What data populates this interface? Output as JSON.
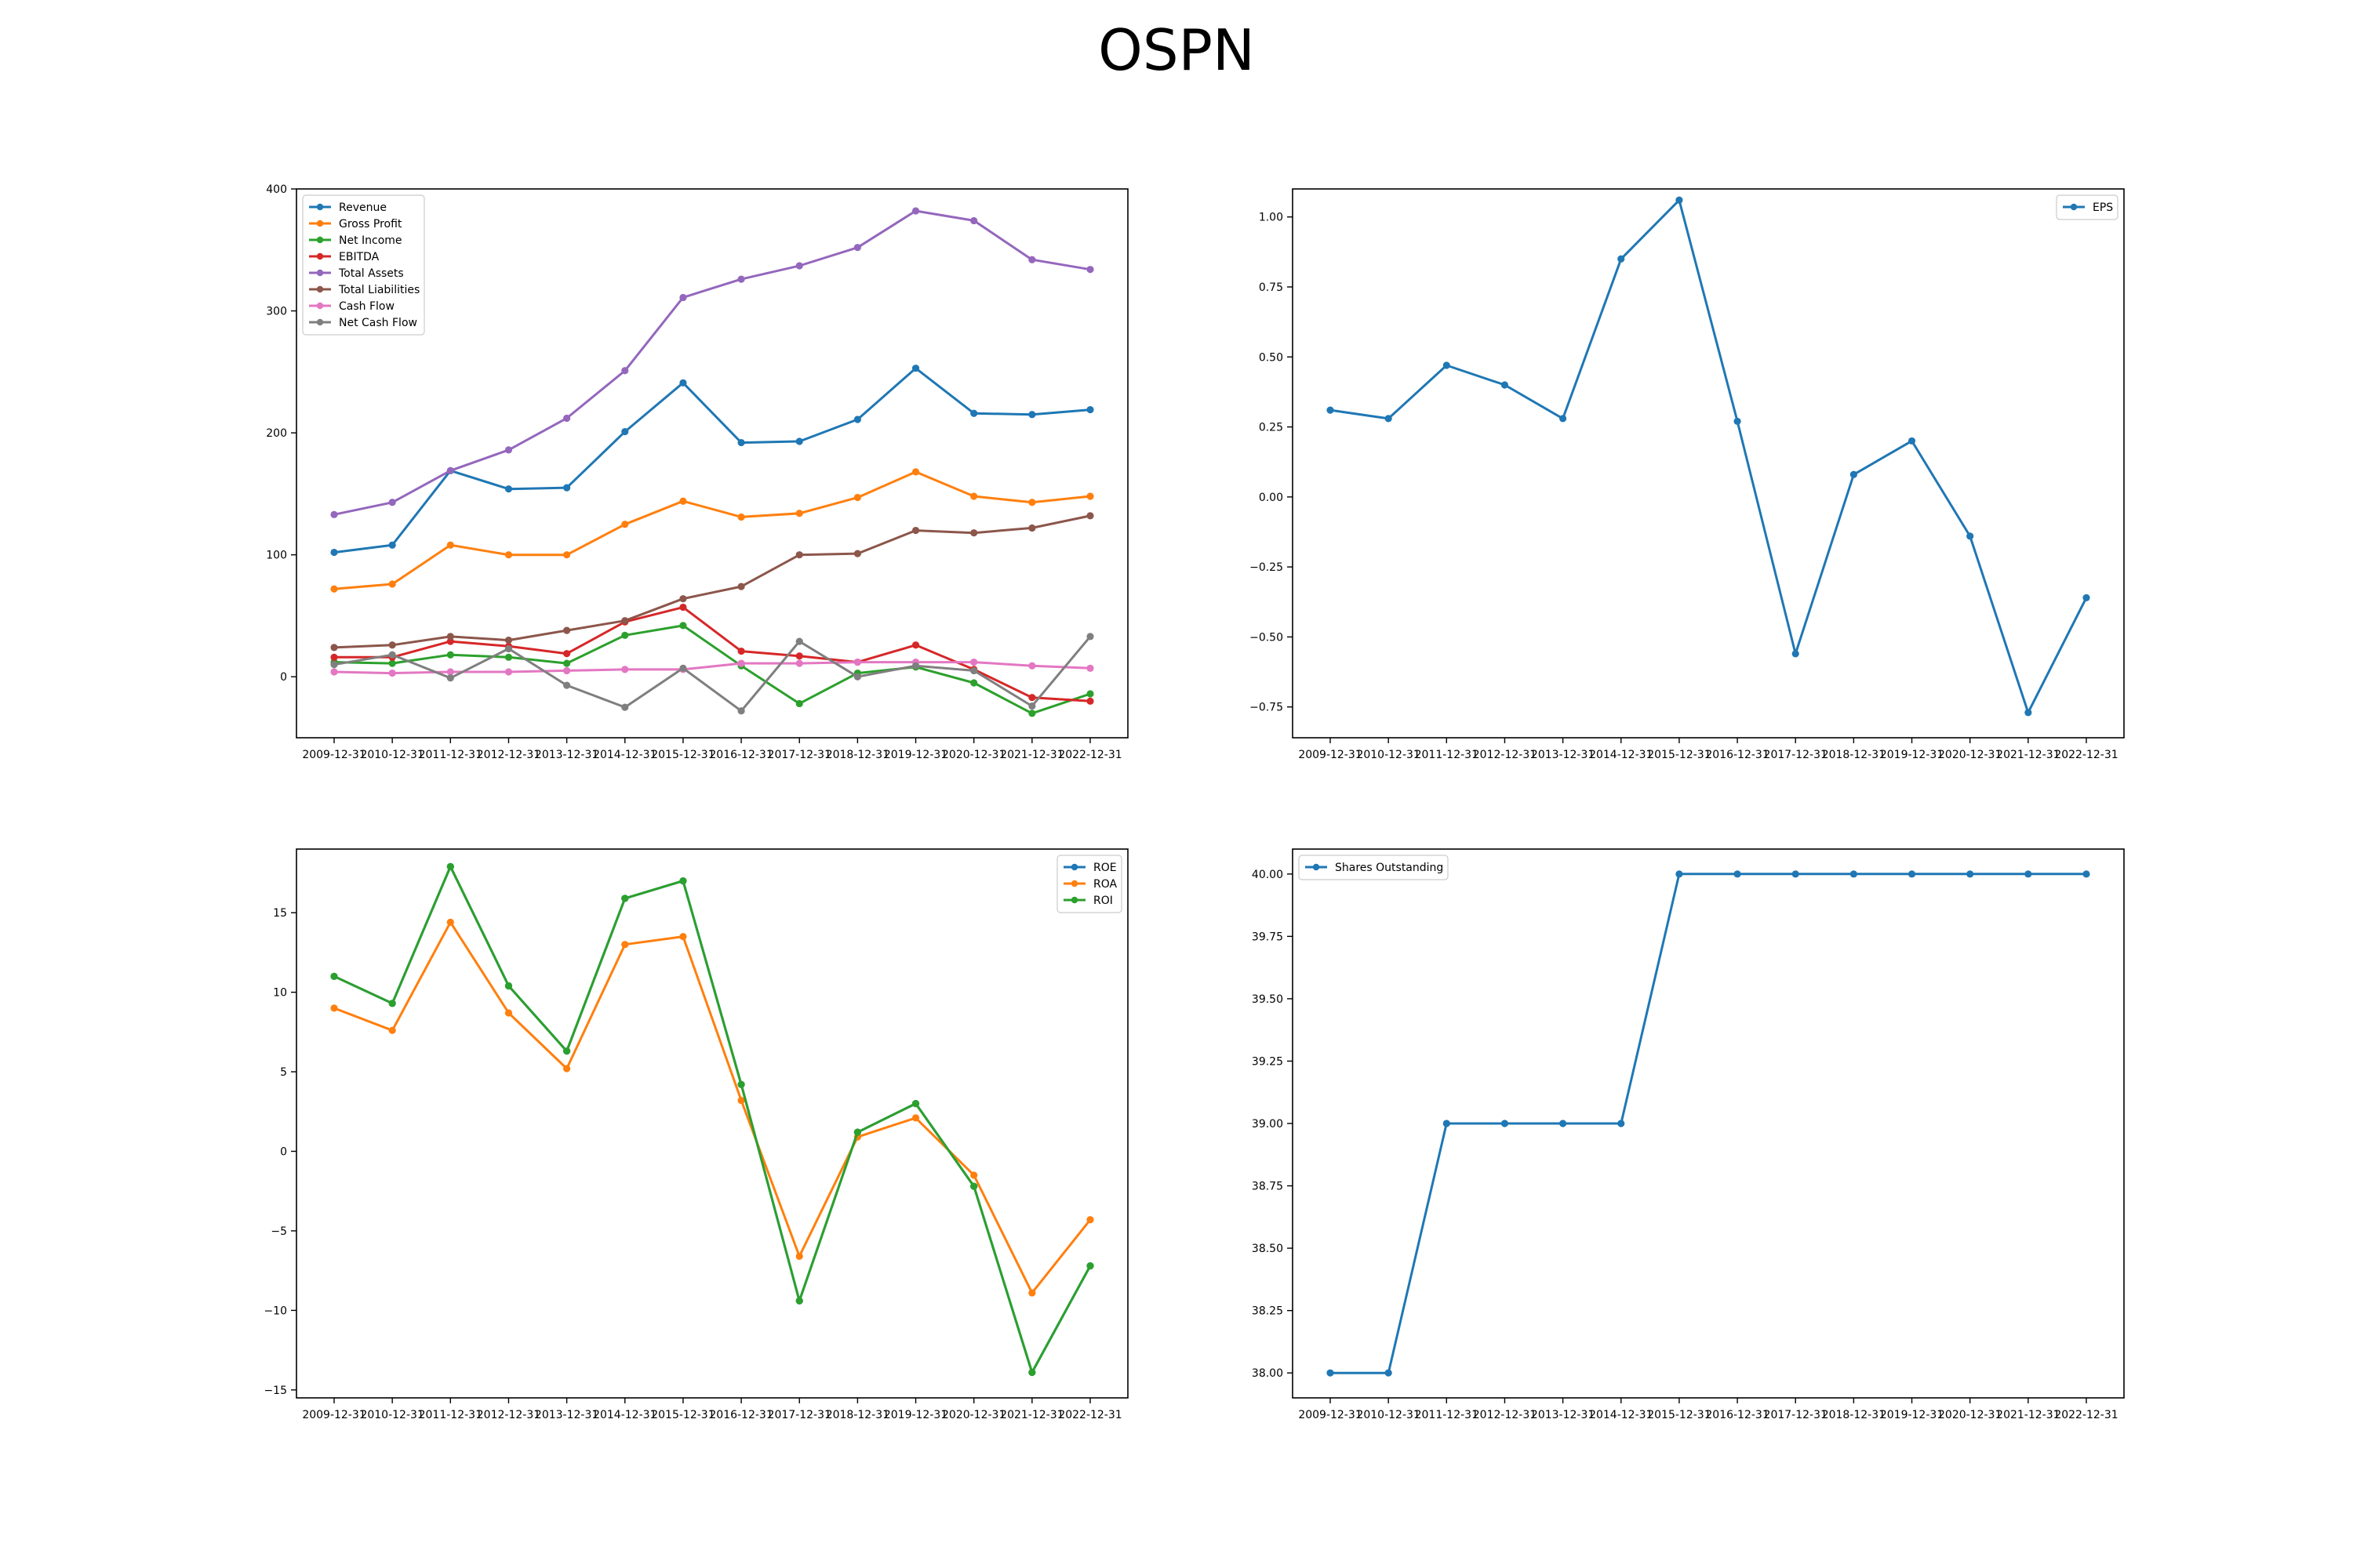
{
  "figure": {
    "title": "OSPN"
  },
  "colors": {
    "blue": "#1f77b4",
    "orange": "#ff7f0e",
    "green": "#2ca02c",
    "red": "#d62728",
    "purple": "#9467bd",
    "brown": "#8c564b",
    "pink": "#e377c2",
    "gray": "#7f7f7f"
  },
  "chart_data": [
    {
      "id": "financials",
      "type": "line",
      "title": "",
      "xlabel": "",
      "ylabel": "",
      "categories": [
        "2009-12-31",
        "2010-12-31",
        "2011-12-31",
        "2012-12-31",
        "2013-12-31",
        "2014-12-31",
        "2015-12-31",
        "2016-12-31",
        "2017-12-31",
        "2018-12-31",
        "2019-12-31",
        "2020-12-31",
        "2021-12-31",
        "2022-12-31"
      ],
      "ylim": [
        -50,
        400
      ],
      "yticks": [
        0,
        100,
        200,
        300,
        400
      ],
      "yticks_labels": [
        "0",
        "100",
        "200",
        "300",
        "400"
      ],
      "legend": "upper-left",
      "series": [
        {
          "name": "Revenue",
          "color": "#1f77b4",
          "values": [
            102,
            108,
            169,
            154,
            155,
            201,
            241,
            192,
            193,
            211,
            253,
            216,
            215,
            219
          ]
        },
        {
          "name": "Gross Profit",
          "color": "#ff7f0e",
          "values": [
            72,
            76,
            108,
            100,
            100,
            125,
            144,
            131,
            134,
            147,
            168,
            148,
            143,
            148
          ]
        },
        {
          "name": "Net Income",
          "color": "#2ca02c",
          "values": [
            12,
            11,
            18,
            16,
            11,
            34,
            42,
            9,
            -22,
            3,
            8,
            -5,
            -30,
            -14
          ]
        },
        {
          "name": "EBITDA",
          "color": "#d62728",
          "values": [
            16,
            16,
            29,
            25,
            19,
            45,
            57,
            21,
            17,
            12,
            26,
            6,
            -17,
            -20
          ]
        },
        {
          "name": "Total Assets",
          "color": "#9467bd",
          "values": [
            133,
            143,
            169,
            186,
            212,
            251,
            311,
            326,
            337,
            352,
            382,
            374,
            342,
            334
          ]
        },
        {
          "name": "Total Liabilities",
          "color": "#8c564b",
          "values": [
            24,
            26,
            33,
            30,
            38,
            46,
            64,
            74,
            100,
            101,
            120,
            118,
            122,
            132
          ]
        },
        {
          "name": "Cash Flow",
          "color": "#e377c2",
          "values": [
            4,
            3,
            4,
            4,
            5,
            6,
            6,
            11,
            11,
            12,
            12,
            12,
            9,
            7
          ]
        },
        {
          "name": "Net Cash Flow",
          "color": "#7f7f7f",
          "values": [
            10,
            18,
            -1,
            23,
            -7,
            -25,
            7,
            -28,
            29,
            0,
            9,
            5,
            -24,
            33
          ]
        }
      ]
    },
    {
      "id": "eps",
      "type": "line",
      "title": "",
      "xlabel": "",
      "ylabel": "",
      "categories": [
        "2009-12-31",
        "2010-12-31",
        "2011-12-31",
        "2012-12-31",
        "2013-12-31",
        "2014-12-31",
        "2015-12-31",
        "2016-12-31",
        "2017-12-31",
        "2018-12-31",
        "2019-12-31",
        "2020-12-31",
        "2021-12-31",
        "2022-12-31"
      ],
      "ylim": [
        -0.86,
        1.1
      ],
      "yticks": [
        -0.75,
        -0.5,
        -0.25,
        0,
        0.25,
        0.5,
        0.75,
        1.0
      ],
      "yticks_labels": [
        "−0.75",
        "−0.50",
        "−0.25",
        "0.00",
        "0.25",
        "0.50",
        "0.75",
        "1.00"
      ],
      "legend": "upper-right",
      "series": [
        {
          "name": "EPS",
          "color": "#1f77b4",
          "values": [
            0.31,
            0.28,
            0.47,
            0.4,
            0.28,
            0.85,
            1.06,
            0.27,
            -0.56,
            0.08,
            0.2,
            -0.14,
            -0.77,
            -0.36
          ]
        }
      ]
    },
    {
      "id": "returns",
      "type": "line",
      "title": "",
      "xlabel": "",
      "ylabel": "",
      "categories": [
        "2009-12-31",
        "2010-12-31",
        "2011-12-31",
        "2012-12-31",
        "2013-12-31",
        "2014-12-31",
        "2015-12-31",
        "2016-12-31",
        "2017-12-31",
        "2018-12-31",
        "2019-12-31",
        "2020-12-31",
        "2021-12-31",
        "2022-12-31"
      ],
      "ylim": [
        -15.5,
        19
      ],
      "yticks": [
        -15,
        -10,
        -5,
        0,
        5,
        10,
        15
      ],
      "yticks_labels": [
        "−15",
        "−10",
        "−5",
        "0",
        "5",
        "10",
        "15"
      ],
      "legend": "upper-right",
      "series": [
        {
          "name": "ROE",
          "color": "#1f77b4",
          "values": [
            11.0,
            9.3,
            17.9,
            10.4,
            6.3,
            15.9,
            17.0,
            4.2,
            -9.4,
            1.2,
            3.0,
            -2.2,
            -13.9,
            -7.2
          ]
        },
        {
          "name": "ROA",
          "color": "#ff7f0e",
          "values": [
            9.0,
            7.6,
            14.4,
            8.7,
            5.2,
            13.0,
            13.5,
            3.2,
            -6.6,
            0.9,
            2.1,
            -1.5,
            -8.9,
            -4.3
          ]
        },
        {
          "name": "ROI",
          "color": "#2ca02c",
          "values": [
            11.0,
            9.3,
            17.9,
            10.4,
            6.3,
            15.9,
            17.0,
            4.2,
            -9.4,
            1.2,
            3.0,
            -2.2,
            -13.9,
            -7.2
          ]
        }
      ]
    },
    {
      "id": "shares",
      "type": "line",
      "title": "",
      "xlabel": "",
      "ylabel": "",
      "categories": [
        "2009-12-31",
        "2010-12-31",
        "2011-12-31",
        "2012-12-31",
        "2013-12-31",
        "2014-12-31",
        "2015-12-31",
        "2016-12-31",
        "2017-12-31",
        "2018-12-31",
        "2019-12-31",
        "2020-12-31",
        "2021-12-31",
        "2022-12-31"
      ],
      "ylim": [
        37.9,
        40.1
      ],
      "yticks": [
        38.0,
        38.25,
        38.5,
        38.75,
        39.0,
        39.25,
        39.5,
        39.75,
        40.0
      ],
      "yticks_labels": [
        "38.00",
        "38.25",
        "38.50",
        "38.75",
        "39.00",
        "39.25",
        "39.50",
        "39.75",
        "40.00"
      ],
      "legend": "upper-left",
      "series": [
        {
          "name": "Shares Outstanding",
          "color": "#1f77b4",
          "values": [
            38,
            38,
            39,
            39,
            39,
            39,
            40,
            40,
            40,
            40,
            40,
            40,
            40,
            40
          ]
        }
      ]
    }
  ]
}
